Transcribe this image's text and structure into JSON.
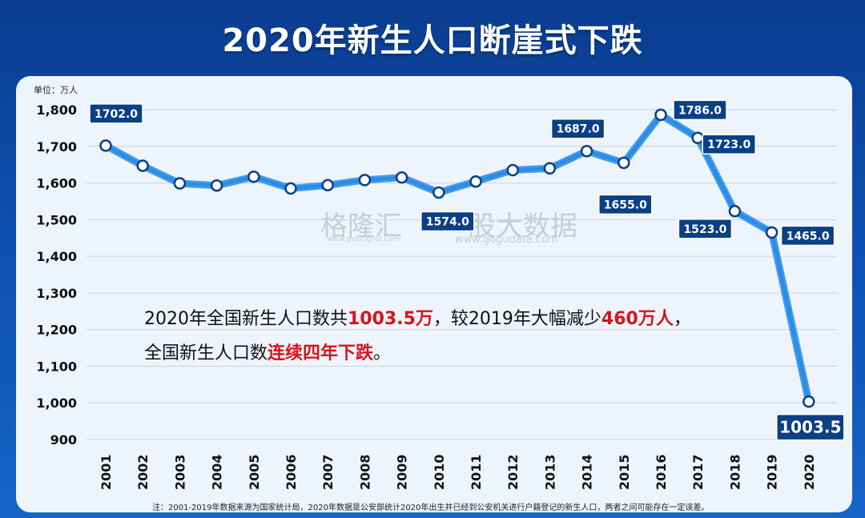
{
  "header": {
    "title": "2020年新生人口断崖式下跌"
  },
  "unit_label": "单位：万人",
  "watermark": {
    "left_name": "格隆汇",
    "left_url": "www.gelonghui.com",
    "right_name": "股大数据",
    "right_url": "www.gogudata.com"
  },
  "annotation": {
    "line1_a": "2020年全国新生人口数共",
    "line1_b": "1003.5万",
    "line1_c": "，较2019年大幅减少",
    "line1_d": "460万人",
    "line1_e": "，",
    "line2_a": "全国新生人口数",
    "line2_b": "连续四年下跌",
    "line2_c": "。"
  },
  "footnote": "注：2001-2019年数据来源为国家统计局，2020年数据是公安部统计2020年出生并已经到公安机关进行户籍登记的新生人口，两者之间可能存在一定误差。",
  "colors": {
    "line": "#1e7fd9",
    "label_bg": "#0b3f86",
    "accent_red": "#d6141b"
  },
  "chart_data": {
    "type": "line",
    "title": "2020年新生人口断崖式下跌",
    "ylabel": "单位：万人",
    "ylim": [
      900,
      1800
    ],
    "yticks": [
      900,
      1000,
      1100,
      1200,
      1300,
      1400,
      1500,
      1600,
      1700,
      1800
    ],
    "ytick_labels": [
      "900",
      "1,000",
      "1,100",
      "1,200",
      "1,300",
      "1,400",
      "1,500",
      "1,600",
      "1,700",
      "1,800"
    ],
    "x": [
      "2001",
      "2002",
      "2003",
      "2004",
      "2005",
      "2006",
      "2007",
      "2008",
      "2009",
      "2010",
      "2011",
      "2012",
      "2013",
      "2014",
      "2015",
      "2016",
      "2017",
      "2018",
      "2019",
      "2020"
    ],
    "values": [
      1702.0,
      1647,
      1599,
      1593,
      1617,
      1585,
      1594,
      1608,
      1615,
      1574.0,
      1604,
      1635,
      1640,
      1687.0,
      1655.0,
      1786.0,
      1723.0,
      1523.0,
      1465.0,
      1003.5
    ],
    "data_labels": [
      {
        "index": 0,
        "text": "1702.0"
      },
      {
        "index": 9,
        "text": "1574.0"
      },
      {
        "index": 13,
        "text": "1687.0"
      },
      {
        "index": 14,
        "text": "1655.0"
      },
      {
        "index": 15,
        "text": "1786.0"
      },
      {
        "index": 16,
        "text": "1723.0"
      },
      {
        "index": 17,
        "text": "1523.0"
      },
      {
        "index": 18,
        "text": "1465.0"
      },
      {
        "index": 19,
        "text": "1003.5"
      }
    ],
    "grid": true
  }
}
